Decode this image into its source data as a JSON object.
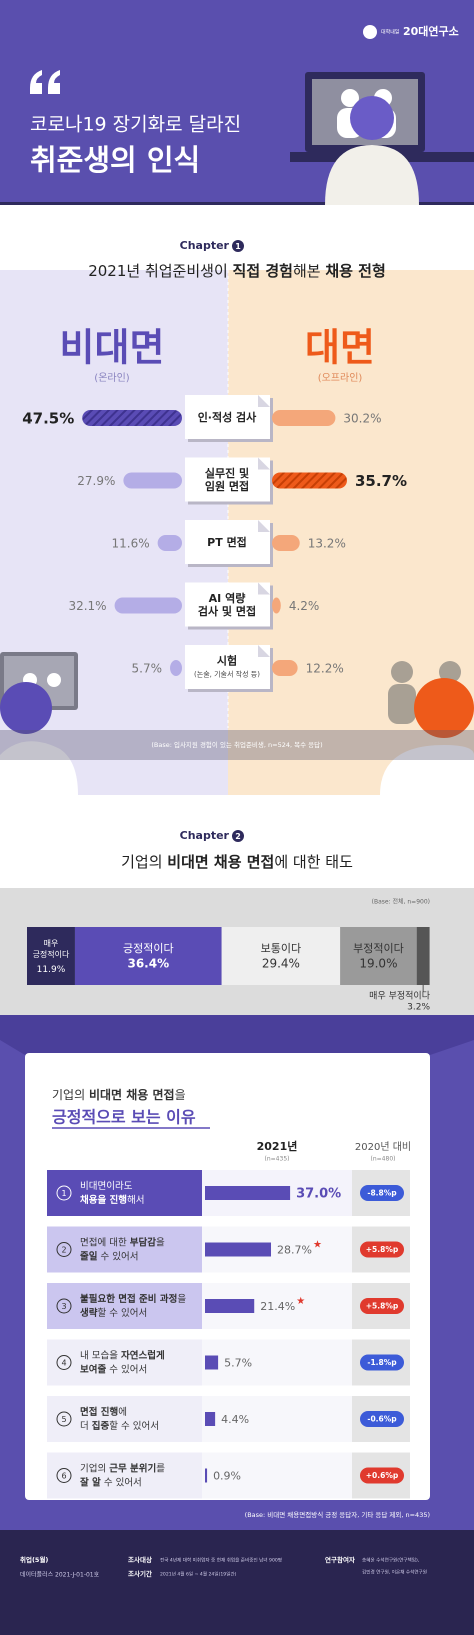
{
  "header": {
    "logo_small": "대학내일",
    "logo": "20대연구소",
    "title_line1": "코로나19 장기화로 달라진",
    "title_line2": "취준생의 인식"
  },
  "chapter1": {
    "chapter_label": "Chapter",
    "chapter_number": "1",
    "title": [
      {
        "text": "2021년 취업준비생이 "
      },
      {
        "text": "직접 경험",
        "bold": true
      },
      {
        "text": "해본 "
      },
      {
        "text": "채용 전형",
        "bold": true
      }
    ],
    "left_title": "비대면",
    "left_subtitle": "(온라인)",
    "right_title": "대면",
    "right_subtitle": "(오프라인)",
    "online_color": "#b4ade6",
    "online_highlight_color": "#5a4cb5",
    "offline_color": "#f4a77a",
    "offline_highlight_color": "#ee5a1a",
    "items": [
      {
        "label_lines": [
          "인·적성 검사"
        ],
        "online": 47.5,
        "online_label": "47.5%",
        "offline": 30.2,
        "offline_label": "30.2%",
        "highlight": "online"
      },
      {
        "label_lines": [
          "실무진 및",
          "임원 면접"
        ],
        "online": 27.9,
        "online_label": "27.9%",
        "offline": 35.7,
        "offline_label": "35.7%",
        "highlight": "offline"
      },
      {
        "label_lines": [
          "PT 면접"
        ],
        "online": 11.6,
        "online_label": "11.6%",
        "offline": 13.2,
        "offline_label": "13.2%"
      },
      {
        "label_lines": [
          "AI 역량",
          "검사 및 면접"
        ],
        "online": 32.1,
        "online_label": "32.1%",
        "offline": 4.2,
        "offline_label": "4.2%"
      },
      {
        "label_lines": [
          "시험"
        ],
        "label_note": "(논술, 기술서 작성 등)",
        "online": 5.7,
        "online_label": "5.7%",
        "offline": 12.2,
        "offline_label": "12.2%"
      }
    ],
    "base": "(Base: 입사지원 경험이 있는 취업준비생, n=524, 복수 응답)"
  },
  "chapter2": {
    "chapter_label": "Chapter",
    "chapter_number": "2",
    "title": [
      {
        "text": "기업의 "
      },
      {
        "text": "비대면 채용 면접",
        "bold": true
      },
      {
        "text": "에 대한 태도"
      }
    ],
    "base": "(Base: 전체, n=900)",
    "segments": [
      {
        "name_lines": [
          "매우",
          "긍정적이다"
        ],
        "value": 11.9,
        "value_label": "11.9%",
        "color": "#2e2a5c"
      },
      {
        "name_lines": [
          "긍정적이다"
        ],
        "value": 36.4,
        "value_label": "36.4%",
        "color": "#5a4cb5"
      },
      {
        "name_lines": [
          "보통이다"
        ],
        "value": 29.4,
        "value_label": "29.4%",
        "color": "#efefef"
      },
      {
        "name_lines": [
          "부정적이다"
        ],
        "value": 19.0,
        "value_label": "19.0%",
        "color": "#9a9a9a"
      },
      {
        "name_lines": [
          "매우 부정적이다"
        ],
        "value": 3.2,
        "value_label": "3.2%",
        "color": "#555555"
      }
    ],
    "reasons": {
      "title_line1": [
        {
          "text": "기업의 "
        },
        {
          "text": "비대면 채용 면접",
          "bold": true
        },
        {
          "text": "을"
        }
      ],
      "title_line2": "긍정적으로 보는 이유",
      "current_header": "2021년",
      "current_n": "(n=435)",
      "change_header": "2020년 대비",
      "change_n": "(n=480)",
      "bar_color": "#5a4cb5",
      "increase_color": "#e03a2e",
      "decrease_color": "#3c5bd8",
      "rows": [
        {
          "number": "1",
          "lines": [
            [
              {
                "text": "비대면이라도"
              }
            ],
            [
              {
                "text": "채용을 진행",
                "bold": true
              },
              {
                "text": "해서"
              }
            ]
          ],
          "value": 37.0,
          "value_label": "37.0%",
          "change": -8.8,
          "change_label": "-8.8%p"
        },
        {
          "number": "2",
          "lines": [
            [
              {
                "text": "면접에 대한 "
              },
              {
                "text": "부담감",
                "bold": true
              },
              {
                "text": "을"
              }
            ],
            [
              {
                "text": "줄일",
                "bold": true
              },
              {
                "text": " 수 있어서"
              }
            ]
          ],
          "value": 28.7,
          "value_label": "28.7%",
          "marker": "★",
          "change": 5.8,
          "change_label": "+5.8%p"
        },
        {
          "number": "3",
          "lines": [
            [
              {
                "text": "불필요한 면접 준비 과정",
                "bold": true
              },
              {
                "text": "을"
              }
            ],
            [
              {
                "text": "생략",
                "bold": true
              },
              {
                "text": "할 수 있어서"
              }
            ]
          ],
          "value": 21.4,
          "value_label": "21.4%",
          "marker": "★",
          "change": 5.8,
          "change_label": "+5.8%p"
        },
        {
          "number": "4",
          "lines": [
            [
              {
                "text": "내 모습을 "
              },
              {
                "text": "자연스럽게",
                "bold": true
              }
            ],
            [
              {
                "text": "보여줄",
                "bold": true
              },
              {
                "text": " 수 있어서"
              }
            ]
          ],
          "value": 5.7,
          "value_label": "5.7%",
          "change": -1.8,
          "change_label": "-1.8%p"
        },
        {
          "number": "5",
          "lines": [
            [
              {
                "text": "면접 진행",
                "bold": true
              },
              {
                "text": "에"
              }
            ],
            [
              {
                "text": "더 "
              },
              {
                "text": "집중",
                "bold": true
              },
              {
                "text": "할 수 있어서"
              }
            ]
          ],
          "value": 4.4,
          "value_label": "4.4%",
          "change": -0.6,
          "change_label": "-0.6%p"
        },
        {
          "number": "6",
          "lines": [
            [
              {
                "text": "기업의 "
              },
              {
                "text": "근무 분위기",
                "bold": true
              },
              {
                "text": "를"
              }
            ],
            [
              {
                "text": "잘 알",
                "bold": true
              },
              {
                "text": " 수 있어서"
              }
            ]
          ],
          "value": 0.9,
          "value_label": "0.9%",
          "change": 0.6,
          "change_label": "+0.6%p"
        }
      ],
      "base": "(Base: 비대면 채용면접방식 긍정 응답자, 기타 응답 제외, n=435)"
    }
  },
  "footer": {
    "series": {
      "label": "취업(5월)",
      "text": "데이터플러스 2021-J-01-01호"
    },
    "survey": [
      {
        "label": "조사대상",
        "text": "전국 4년제 대학 미취업자 중 현재 취업을 준비중인 남녀 900명"
      },
      {
        "label": "조사기간",
        "text": "2021년 4월 6일 ~ 4월 24일(19일간)"
      }
    ],
    "participants": {
      "label": "연구참여자",
      "lines": [
        "송혜윤 수석연구원(연구책임),",
        "김민경 연구원, 이은채 수석연구원"
      ]
    }
  }
}
